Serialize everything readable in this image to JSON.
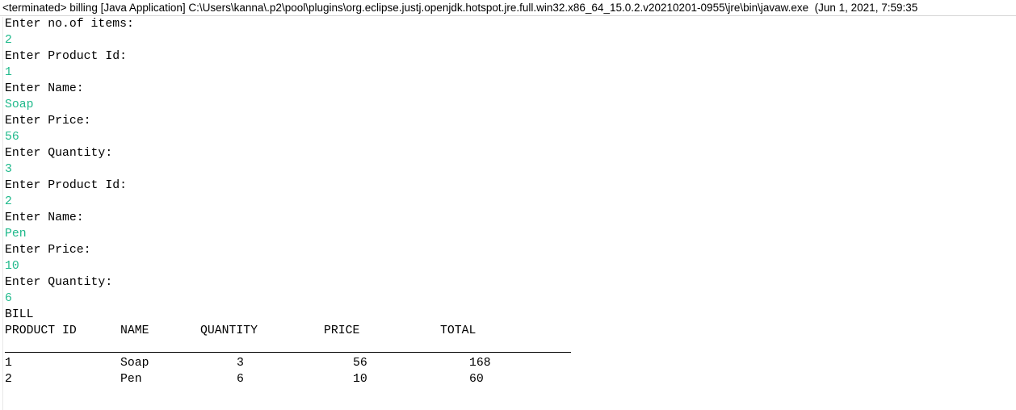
{
  "header": {
    "title": "<terminated> billing [Java Application] C:\\Users\\kanna\\.p2\\pool\\plugins\\org.eclipse.justj.openjdk.hotspot.jre.full.win32.x86_64_15.0.2.v20210201-0955\\jre\\bin\\javaw.exe  (Jun 1, 2021, 7:59:35"
  },
  "console": [
    {
      "prompt": "Enter no.of items:",
      "input": "2"
    },
    {
      "prompt": "Enter Product Id:",
      "input": "1"
    },
    {
      "prompt": "Enter Name:",
      "input": "Soap"
    },
    {
      "prompt": "Enter Price:",
      "input": "56"
    },
    {
      "prompt": "Enter Quantity:",
      "input": "3"
    },
    {
      "prompt": "Enter Product Id:",
      "input": "2"
    },
    {
      "prompt": "Enter Name:",
      "input": "Pen"
    },
    {
      "prompt": "Enter Price:",
      "input": "10"
    },
    {
      "prompt": "Enter Quantity:",
      "input": "6"
    }
  ],
  "bill": {
    "title": "BILL",
    "columns": [
      "PRODUCT ID",
      "NAME",
      "QUANTITY",
      "PRICE",
      "TOTAL"
    ],
    "rows": [
      [
        "1",
        "Soap",
        "3",
        "56",
        "168"
      ],
      [
        "2",
        "Pen",
        "6",
        "10",
        "60"
      ]
    ]
  }
}
